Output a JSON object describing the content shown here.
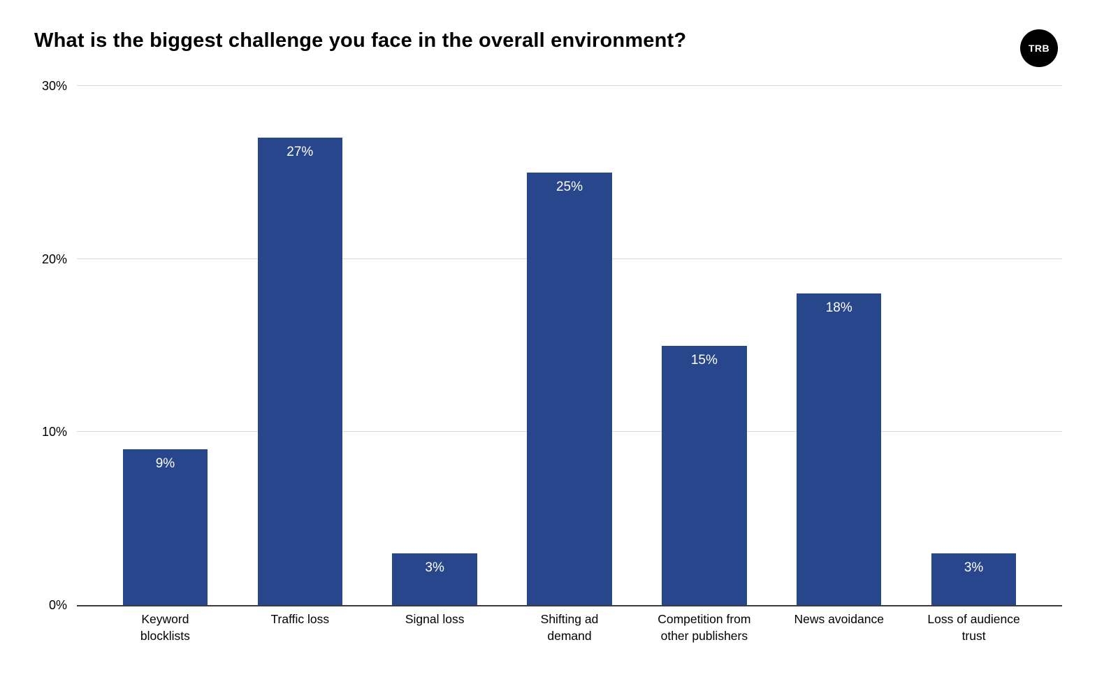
{
  "header": {
    "logo_text": "TRB"
  },
  "chart_data": {
    "type": "bar",
    "title": "What is the biggest challenge you face in the overall environment?",
    "categories": [
      "Keyword blocklists",
      "Traffic loss",
      "Signal loss",
      "Shifting ad demand",
      "Competition from other publishers",
      "News avoidance",
      "Loss of audience trust"
    ],
    "categories_wrapped": [
      "Keyword\nblocklists",
      "Traffic loss",
      "Signal loss",
      "Shifting ad\ndemand",
      "Competition from\nother publishers",
      "News avoidance",
      "Loss of audience\ntrust"
    ],
    "values": [
      9,
      27,
      3,
      25,
      15,
      18,
      3
    ],
    "value_labels": [
      "9%",
      "27%",
      "3%",
      "25%",
      "15%",
      "18%",
      "3%"
    ],
    "xlabel": "",
    "ylabel": "",
    "ylim": [
      0,
      30
    ],
    "yticks": [
      0,
      10,
      20,
      30
    ],
    "ytick_labels": [
      "0%",
      "10%",
      "20%",
      "30%"
    ],
    "grid": true,
    "legend": "none",
    "colors": {
      "bar": "#28468b",
      "bar_value_text": "#ffffff",
      "gridline": "#d9d9d9",
      "axis_line": "#3c3c3c",
      "text": "#000000",
      "background": "#ffffff",
      "logo_bg": "#000000",
      "logo_text": "#ffffff"
    }
  }
}
